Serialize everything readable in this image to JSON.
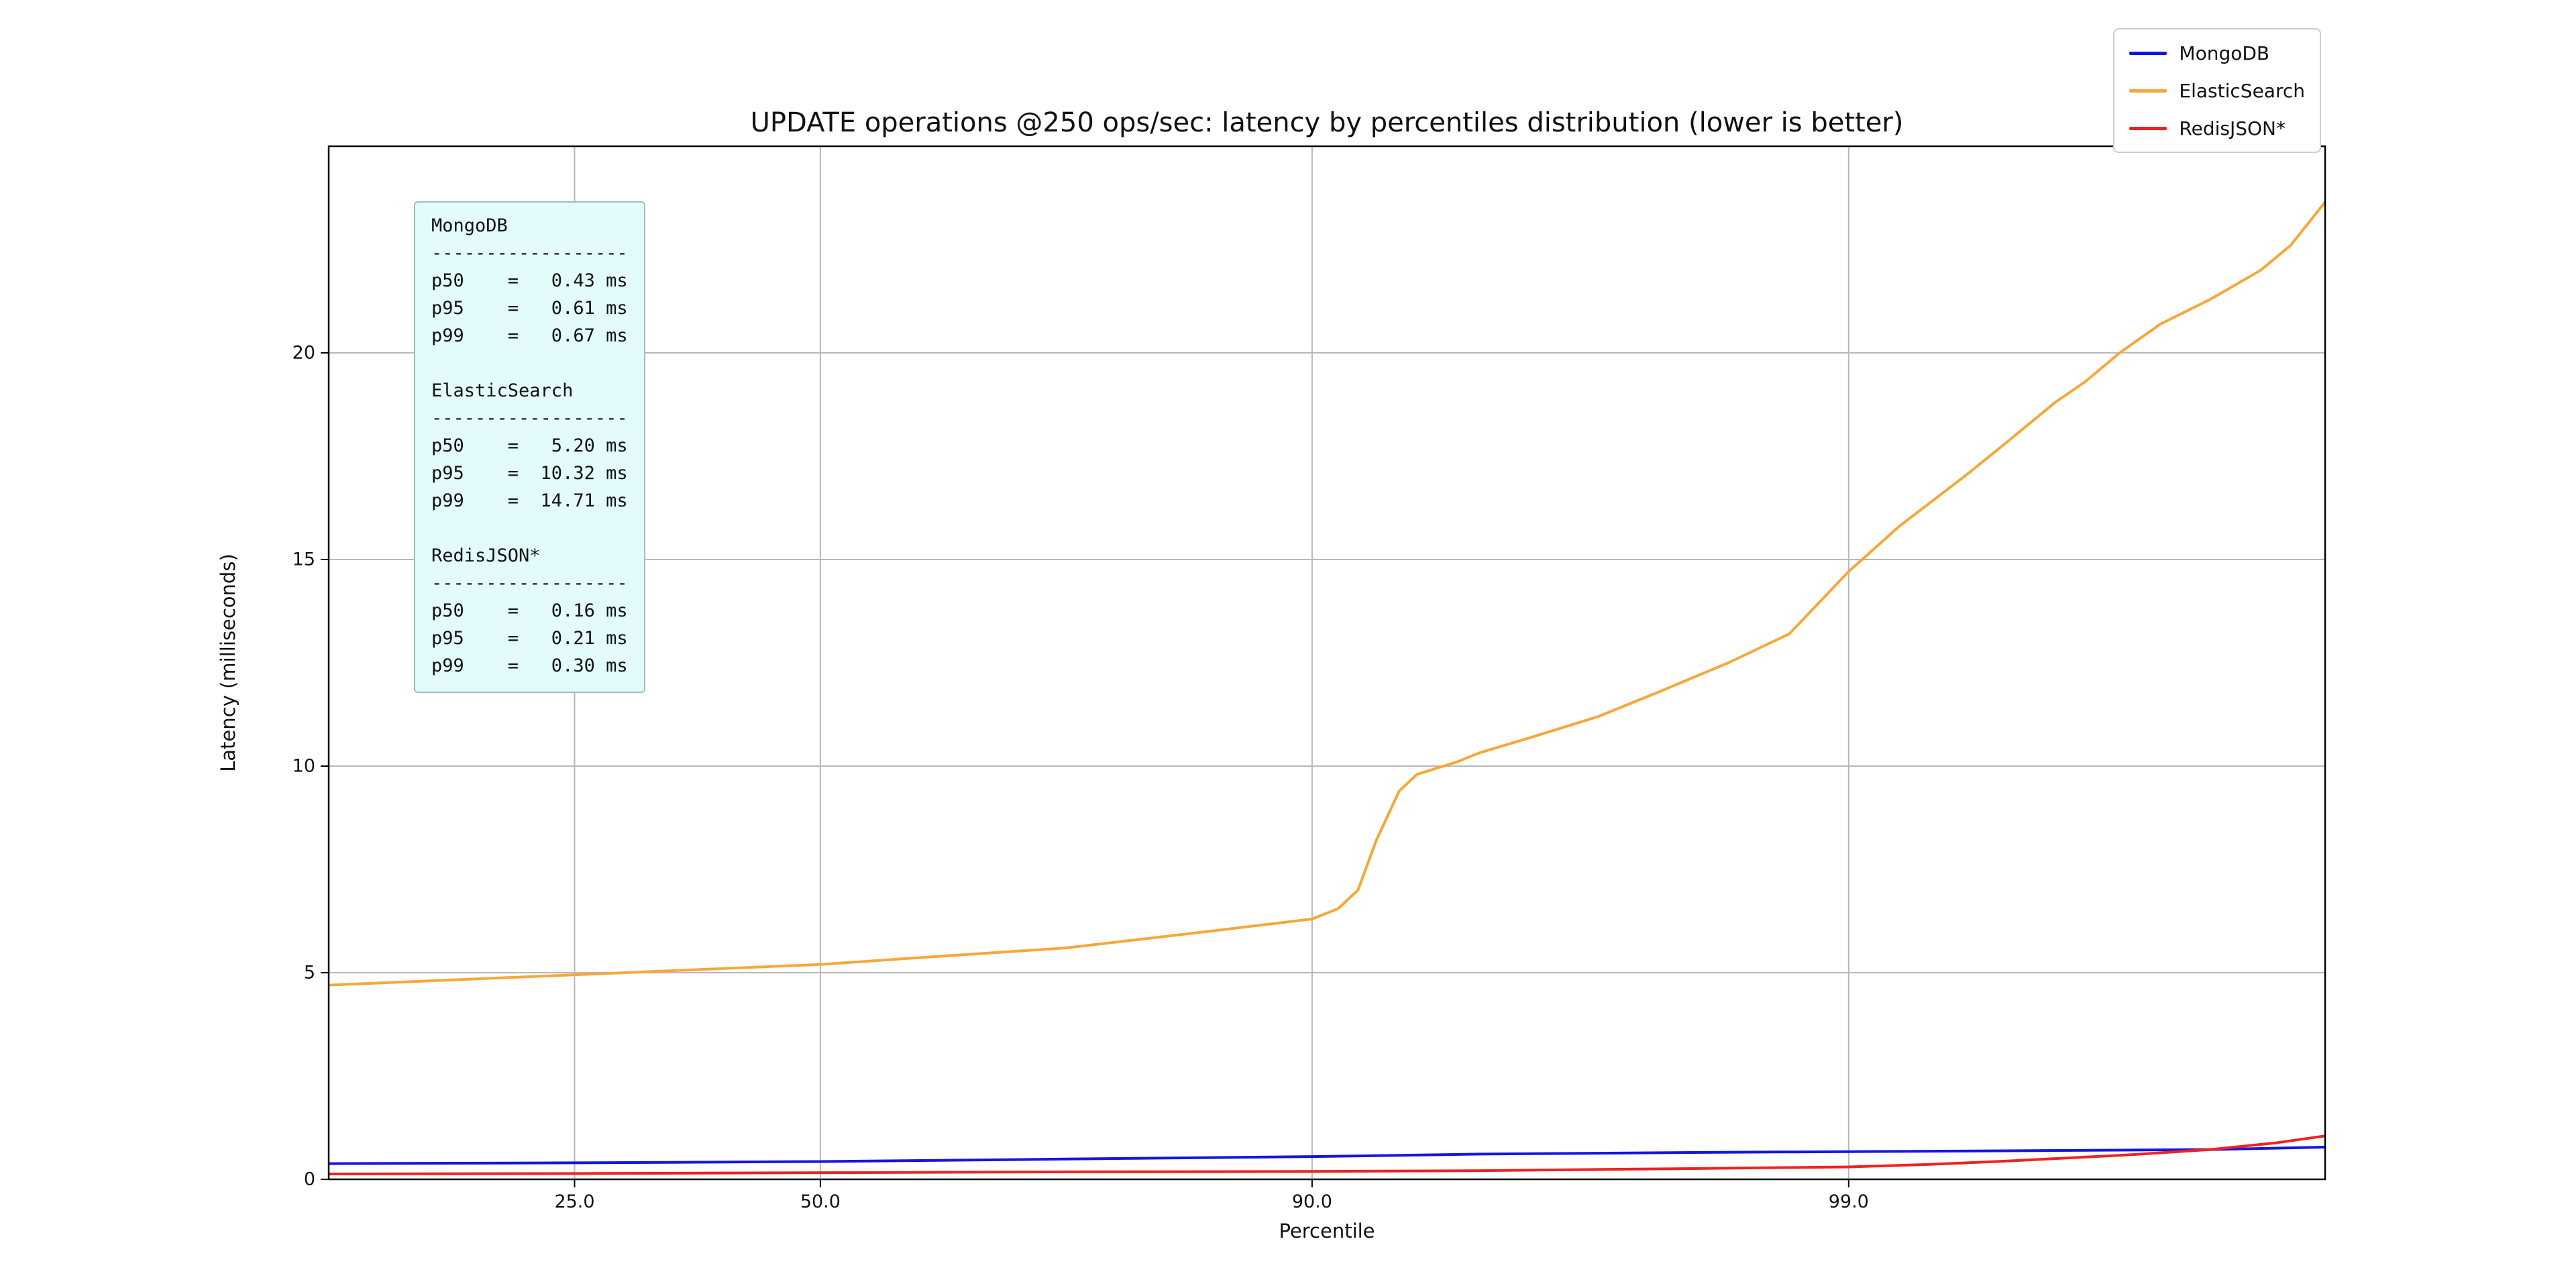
{
  "figure": {
    "title": "UPDATE operations @250 ops/sec: latency by percentiles distribution (lower is better)",
    "xlabel": "Percentile",
    "ylabel": "Latency (milliseconds)"
  },
  "stats_box": {
    "divider": "------------------",
    "unit": "ms",
    "sections": [
      {
        "name": "MongoDB",
        "rows": [
          {
            "label": "p50",
            "value": "0.43"
          },
          {
            "label": "p95",
            "value": "0.61"
          },
          {
            "label": "p99",
            "value": "0.67"
          }
        ]
      },
      {
        "name": "ElasticSearch",
        "rows": [
          {
            "label": "p50",
            "value": "5.20"
          },
          {
            "label": "p95",
            "value": "10.32"
          },
          {
            "label": "p99",
            "value": "14.71"
          }
        ]
      },
      {
        "name": "RedisJSON*",
        "rows": [
          {
            "label": "p50",
            "value": "0.16"
          },
          {
            "label": "p95",
            "value": "0.21"
          },
          {
            "label": "p99",
            "value": "0.30"
          }
        ]
      }
    ]
  },
  "chart_data": {
    "type": "line",
    "title": "UPDATE operations @250 ops/sec: latency by percentiles distribution (lower is better)",
    "xlabel": "Percentile",
    "ylabel": "Latency (milliseconds)",
    "x_scale": "logit-percentile",
    "x_ticks": [
      25.0,
      50.0,
      90.0,
      99.0
    ],
    "x_tick_labels": [
      "25.0",
      "50.0",
      "90.0",
      "99.0"
    ],
    "x_range_percentile": [
      10,
      99.88
    ],
    "ylim": [
      0,
      25
    ],
    "y_ticks": [
      0,
      5,
      10,
      15,
      20
    ],
    "grid": true,
    "grid_color": "#b8b8b8",
    "legend_position": "upper right (outside axes)",
    "series": [
      {
        "name": "MongoDB",
        "color": "#1515e0",
        "p50": 0.43,
        "p95": 0.61,
        "p99": 0.67,
        "points": [
          [
            10,
            0.38
          ],
          [
            25,
            0.4
          ],
          [
            50,
            0.43
          ],
          [
            75,
            0.49
          ],
          [
            90,
            0.55
          ],
          [
            95,
            0.61
          ],
          [
            98,
            0.65
          ],
          [
            99,
            0.67
          ],
          [
            99.5,
            0.69
          ],
          [
            99.8,
            0.72
          ],
          [
            99.88,
            0.78
          ]
        ]
      },
      {
        "name": "ElasticSearch",
        "color": "#f5a83a",
        "p50": 5.2,
        "p95": 10.32,
        "p99": 14.71,
        "points": [
          [
            10,
            4.7
          ],
          [
            25,
            4.95
          ],
          [
            50,
            5.2
          ],
          [
            60,
            5.35
          ],
          [
            75,
            5.6
          ],
          [
            85,
            6.0
          ],
          [
            90,
            6.3
          ],
          [
            91,
            6.55
          ],
          [
            91.7,
            7.0
          ],
          [
            92.3,
            8.2
          ],
          [
            93,
            9.4
          ],
          [
            93.5,
            9.8
          ],
          [
            94.5,
            10.1
          ],
          [
            95,
            10.32
          ],
          [
            96,
            10.7
          ],
          [
            97,
            11.2
          ],
          [
            97.7,
            11.8
          ],
          [
            98.3,
            12.5
          ],
          [
            98.7,
            13.2
          ],
          [
            99,
            14.71
          ],
          [
            99.2,
            15.8
          ],
          [
            99.4,
            17.0
          ],
          [
            99.5,
            17.8
          ],
          [
            99.6,
            18.8
          ],
          [
            99.65,
            19.3
          ],
          [
            99.7,
            20.0
          ],
          [
            99.75,
            20.7
          ],
          [
            99.8,
            21.3
          ],
          [
            99.84,
            22.0
          ],
          [
            99.86,
            22.6
          ],
          [
            99.88,
            23.65
          ]
        ]
      },
      {
        "name": "RedisJSON*",
        "color": "#ee2222",
        "p50": 0.16,
        "p95": 0.21,
        "p99": 0.3,
        "points": [
          [
            10,
            0.13
          ],
          [
            25,
            0.14
          ],
          [
            50,
            0.16
          ],
          [
            75,
            0.18
          ],
          [
            90,
            0.19
          ],
          [
            95,
            0.21
          ],
          [
            98,
            0.26
          ],
          [
            99,
            0.3
          ],
          [
            99.3,
            0.36
          ],
          [
            99.5,
            0.44
          ],
          [
            99.7,
            0.58
          ],
          [
            99.8,
            0.72
          ],
          [
            99.85,
            0.88
          ],
          [
            99.88,
            1.05
          ]
        ]
      }
    ]
  }
}
